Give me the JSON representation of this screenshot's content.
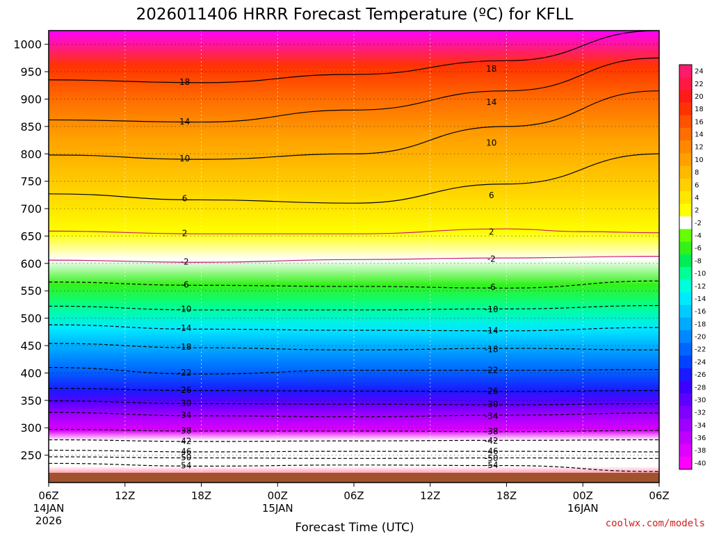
{
  "chart_data": {
    "type": "heatmap",
    "title": "2026011406 HRRR Forecast Temperature (ºC) for KFLL",
    "xlabel": "Forecast Time (UTC)",
    "ylabel": "",
    "credit": "coolwx.com/models",
    "y_axis": {
      "units": "hPa",
      "range": [
        1025,
        200
      ],
      "ticks": [
        "250",
        "300",
        "350",
        "400",
        "450",
        "500",
        "550",
        "600",
        "650",
        "700",
        "750",
        "800",
        "850",
        "900",
        "950",
        "1000"
      ]
    },
    "x_axis": {
      "units": "forecast hour",
      "range": [
        0,
        48
      ],
      "ticks": [
        {
          "hour": 0,
          "label": "06Z",
          "sub1": "14JAN",
          "sub2": "2026"
        },
        {
          "hour": 6,
          "label": "12Z",
          "sub1": "",
          "sub2": ""
        },
        {
          "hour": 12,
          "label": "18Z",
          "sub1": "",
          "sub2": ""
        },
        {
          "hour": 18,
          "label": "00Z",
          "sub1": "15JAN",
          "sub2": ""
        },
        {
          "hour": 24,
          "label": "06Z",
          "sub1": "",
          "sub2": ""
        },
        {
          "hour": 30,
          "label": "12Z",
          "sub1": "",
          "sub2": ""
        },
        {
          "hour": 36,
          "label": "18Z",
          "sub1": "",
          "sub2": ""
        },
        {
          "hour": 42,
          "label": "00Z",
          "sub1": "16JAN",
          "sub2": ""
        },
        {
          "hour": 48,
          "label": "06Z",
          "sub1": "",
          "sub2": ""
        }
      ]
    },
    "colorbar": {
      "labels": [
        "24",
        "22",
        "20",
        "18",
        "16",
        "14",
        "12",
        "10",
        "8",
        "6",
        "4",
        "2",
        "-2",
        "-4",
        "-6",
        "-8",
        "-10",
        "-12",
        "-14",
        "-16",
        "-18",
        "-20",
        "-22",
        "-24",
        "-26",
        "-28",
        "-30",
        "-32",
        "-34",
        "-36",
        "-38",
        "-40"
      ],
      "colors": [
        "#ff1a6b",
        "#ff1a44",
        "#ff1a1a",
        "#ff3300",
        "#ff5200",
        "#ff6e00",
        "#ff8800",
        "#ffa000",
        "#ffb800",
        "#ffcf00",
        "#ffe600",
        "#ffff00",
        "#ffffff",
        "#66ff00",
        "#33f21a",
        "#00ee55",
        "#00ff99",
        "#00ffdd",
        "#00eaff",
        "#00ccff",
        "#00aaff",
        "#0088ff",
        "#0066ff",
        "#0044ff",
        "#1a1aff",
        "#3d00ff",
        "#5e00ff",
        "#7f00ff",
        "#9f00ff",
        "#bf00ff",
        "#df00ff",
        "#ff00ff"
      ]
    },
    "isotherms": [
      {
        "value": -54,
        "pts": [
          [
            0,
            235
          ],
          [
            12,
            230
          ],
          [
            24,
            232
          ],
          [
            36,
            231
          ],
          [
            48,
            220
          ]
        ]
      },
      {
        "value": -50,
        "pts": [
          [
            0,
            247
          ],
          [
            12,
            245
          ],
          [
            24,
            244
          ],
          [
            36,
            245
          ],
          [
            48,
            244
          ]
        ]
      },
      {
        "value": -46,
        "pts": [
          [
            0,
            259
          ],
          [
            12,
            256
          ],
          [
            24,
            257
          ],
          [
            36,
            257
          ],
          [
            48,
            256
          ]
        ]
      },
      {
        "value": -42,
        "pts": [
          [
            0,
            278
          ],
          [
            12,
            275
          ],
          [
            24,
            276
          ],
          [
            36,
            277
          ],
          [
            48,
            278
          ]
        ]
      },
      {
        "value": -38,
        "pts": [
          [
            0,
            297
          ],
          [
            12,
            294
          ],
          [
            24,
            294
          ],
          [
            36,
            293
          ],
          [
            48,
            295
          ]
        ]
      },
      {
        "value": -34,
        "pts": [
          [
            0,
            328
          ],
          [
            12,
            322
          ],
          [
            24,
            320
          ],
          [
            36,
            323
          ],
          [
            48,
            327
          ]
        ]
      },
      {
        "value": -30,
        "pts": [
          [
            0,
            349
          ],
          [
            12,
            344
          ],
          [
            24,
            343
          ],
          [
            36,
            342
          ],
          [
            48,
            344
          ]
        ]
      },
      {
        "value": -26,
        "pts": [
          [
            0,
            372
          ],
          [
            12,
            368
          ],
          [
            24,
            367
          ],
          [
            36,
            366
          ],
          [
            48,
            368
          ]
        ]
      },
      {
        "value": -22,
        "pts": [
          [
            0,
            410
          ],
          [
            12,
            398
          ],
          [
            24,
            405
          ],
          [
            36,
            405
          ],
          [
            48,
            406
          ]
        ]
      },
      {
        "value": -18,
        "pts": [
          [
            0,
            454
          ],
          [
            12,
            446
          ],
          [
            24,
            442
          ],
          [
            36,
            445
          ],
          [
            48,
            442
          ]
        ]
      },
      {
        "value": -14,
        "pts": [
          [
            0,
            488
          ],
          [
            12,
            480
          ],
          [
            24,
            478
          ],
          [
            36,
            477
          ],
          [
            48,
            483
          ]
        ]
      },
      {
        "value": -10,
        "pts": [
          [
            0,
            522
          ],
          [
            12,
            515
          ],
          [
            24,
            515
          ],
          [
            36,
            517
          ],
          [
            48,
            523
          ]
        ]
      },
      {
        "value": -6,
        "pts": [
          [
            0,
            566
          ],
          [
            12,
            560
          ],
          [
            24,
            558
          ],
          [
            36,
            555
          ],
          [
            48,
            568
          ]
        ]
      },
      {
        "value": -2,
        "pts": [
          [
            0,
            606
          ],
          [
            12,
            602
          ],
          [
            24,
            607
          ],
          [
            36,
            610
          ],
          [
            48,
            613
          ]
        ]
      },
      {
        "value": 2,
        "pts": [
          [
            0,
            659
          ],
          [
            12,
            654
          ],
          [
            24,
            654
          ],
          [
            36,
            663
          ],
          [
            42,
            658
          ],
          [
            48,
            656
          ]
        ]
      },
      {
        "value": 6,
        "pts": [
          [
            0,
            727
          ],
          [
            12,
            716
          ],
          [
            24,
            710
          ],
          [
            36,
            745
          ],
          [
            48,
            800
          ]
        ]
      },
      {
        "value": 10,
        "pts": [
          [
            0,
            798
          ],
          [
            12,
            790
          ],
          [
            24,
            800
          ],
          [
            36,
            850
          ],
          [
            48,
            915
          ]
        ]
      },
      {
        "value": 14,
        "pts": [
          [
            0,
            862
          ],
          [
            12,
            858
          ],
          [
            24,
            880
          ],
          [
            36,
            915
          ],
          [
            48,
            975
          ]
        ]
      },
      {
        "value": 18,
        "pts": [
          [
            0,
            935
          ],
          [
            12,
            930
          ],
          [
            24,
            945
          ],
          [
            36,
            970
          ],
          [
            48,
            1025
          ]
        ]
      }
    ]
  }
}
